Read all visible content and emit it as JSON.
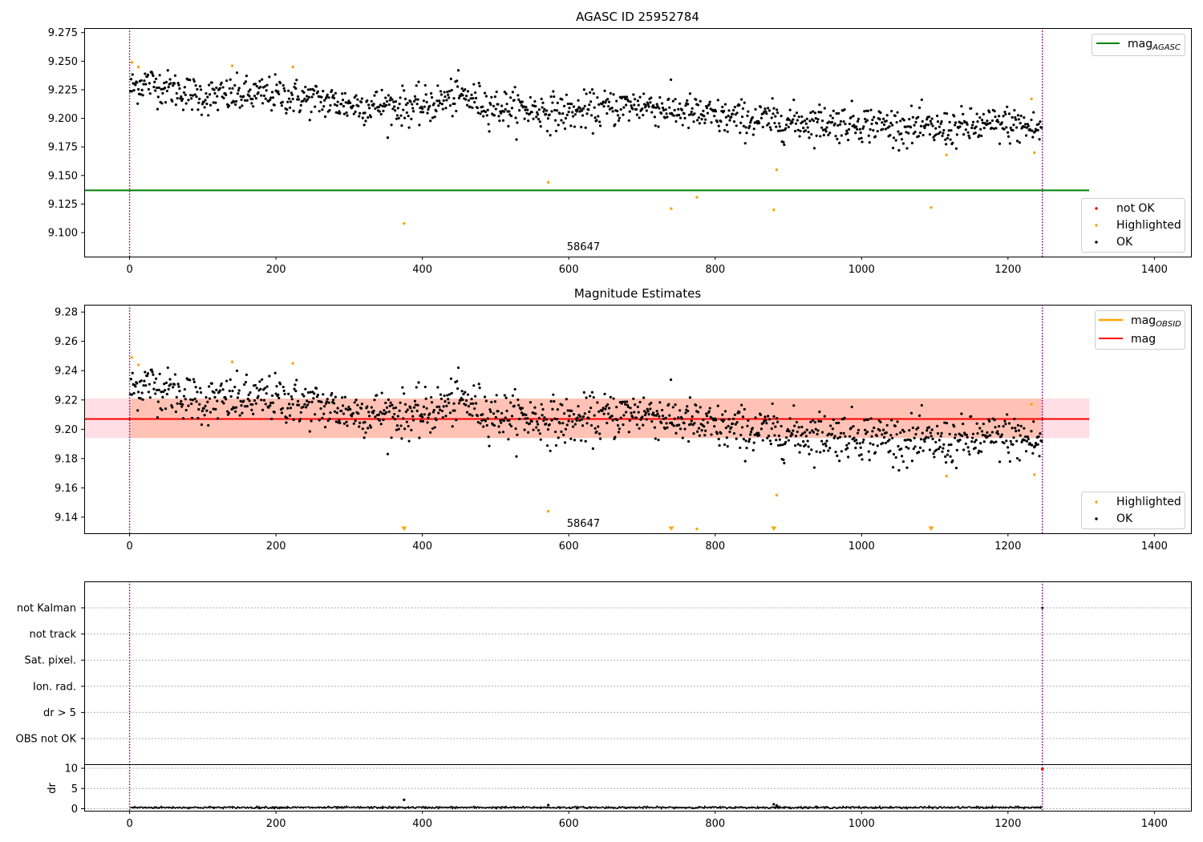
{
  "colors": {
    "ok": "#000000",
    "highlighted": "#ffa500",
    "not_ok": "#ff0000",
    "agasc_line": "#008000",
    "mag_line": "#ff0000",
    "mag_obsid": "#ffa500",
    "band_outer": "#ffc0cb",
    "band_inner": "#ffa07a",
    "obs_boundary": "#800080"
  },
  "chart_data": [
    {
      "type": "scatter",
      "title": "AGASC ID 25952784",
      "xlim": [
        -62,
        1450
      ],
      "ylim": [
        9.079,
        9.279
      ],
      "xticks": [
        0,
        200,
        400,
        600,
        800,
        1000,
        1200,
        1400
      ],
      "yticks": [
        9.1,
        9.125,
        9.15,
        9.175,
        9.2,
        9.225,
        9.25,
        9.275
      ],
      "ytick_labels": [
        "9.100",
        "9.125",
        "9.150",
        "9.175",
        "9.200",
        "9.225",
        "9.250",
        "9.275"
      ],
      "obs_boundaries": [
        0,
        1247
      ],
      "obsid_label": {
        "text": "58647",
        "x": 620
      },
      "mag_agasc": {
        "value": 9.137,
        "x_range": [
          -62,
          1311
        ]
      },
      "legend_lines": [
        {
          "label": "mag",
          "sub": "AGASC",
          "color_key": "agasc_line"
        }
      ],
      "legend_points": [
        {
          "label": "not OK",
          "color_key": "not_ok"
        },
        {
          "label": "Highlighted",
          "color_key": "highlighted"
        },
        {
          "label": "OK",
          "color_key": "ok"
        }
      ],
      "ok_trend": {
        "x": [
          0,
          20,
          100,
          200,
          300,
          400,
          450,
          500,
          600,
          700,
          800,
          900,
          1000,
          1100,
          1200,
          1247
        ],
        "y": [
          9.226,
          9.232,
          9.219,
          9.221,
          9.212,
          9.21,
          9.22,
          9.21,
          9.205,
          9.212,
          9.201,
          9.197,
          9.196,
          9.19,
          9.195,
          9.19
        ],
        "n": 1240,
        "scatter": 0.008
      },
      "highlighted_points": [
        {
          "x": 3,
          "y": 9.249
        },
        {
          "x": 12,
          "y": 9.245
        },
        {
          "x": 140,
          "y": 9.246
        },
        {
          "x": 223,
          "y": 9.245
        },
        {
          "x": 375,
          "y": 9.108
        },
        {
          "x": 572,
          "y": 9.144
        },
        {
          "x": 740,
          "y": 9.121
        },
        {
          "x": 775,
          "y": 9.131
        },
        {
          "x": 880,
          "y": 9.12
        },
        {
          "x": 884,
          "y": 9.155
        },
        {
          "x": 1095,
          "y": 9.122
        },
        {
          "x": 1116,
          "y": 9.168
        },
        {
          "x": 1236,
          "y": 9.17
        },
        {
          "x": 1232,
          "y": 9.217
        }
      ]
    },
    {
      "type": "scatter",
      "title": "Magnitude Estimates",
      "xlim": [
        -62,
        1450
      ],
      "ylim": [
        9.129,
        9.285
      ],
      "xticks": [
        0,
        200,
        400,
        600,
        800,
        1000,
        1200,
        1400
      ],
      "yticks": [
        9.14,
        9.16,
        9.18,
        9.2,
        9.22,
        9.24,
        9.26,
        9.28
      ],
      "ytick_labels": [
        "9.14",
        "9.16",
        "9.18",
        "9.20",
        "9.22",
        "9.24",
        "9.26",
        "9.28"
      ],
      "obs_boundaries": [
        0,
        1247
      ],
      "obsid_label": {
        "text": "58647",
        "x": 620
      },
      "mag": 9.207,
      "mag_band_outer": [
        9.194,
        9.221
      ],
      "mag_band_inner": [
        9.194,
        9.221
      ],
      "inner_band_x": [
        0,
        1247
      ],
      "mag_x_range": [
        -62,
        1311
      ],
      "legend_lines": [
        {
          "label": "mag",
          "sub": "OBSID",
          "color_key": "mag_obsid"
        },
        {
          "label": "mag",
          "sub": "",
          "color_key": "mag_line"
        }
      ],
      "legend_points": [
        {
          "label": "Highlighted",
          "color_key": "highlighted"
        },
        {
          "label": "OK",
          "color_key": "ok"
        }
      ],
      "offscale_markers_x": [
        375,
        740,
        880,
        1095
      ],
      "highlighted_points": [
        {
          "x": 3,
          "y": 9.249
        },
        {
          "x": 12,
          "y": 9.244
        },
        {
          "x": 140,
          "y": 9.246
        },
        {
          "x": 223,
          "y": 9.245
        },
        {
          "x": 572,
          "y": 9.144
        },
        {
          "x": 775,
          "y": 9.132
        },
        {
          "x": 884,
          "y": 9.155
        },
        {
          "x": 1116,
          "y": 9.168
        },
        {
          "x": 1236,
          "y": 9.169
        },
        {
          "x": 1232,
          "y": 9.217
        }
      ]
    },
    {
      "type": "scatter",
      "title": "",
      "xlim": [
        -62,
        1450
      ],
      "categories": [
        "not Kalman",
        "not track",
        "Sat. pixel.",
        "Ion. rad.",
        "dr > 5",
        "OBS not OK"
      ],
      "obs_boundaries": [
        0,
        1247
      ],
      "flag_points": [
        {
          "x": 1247,
          "category": "not Kalman"
        }
      ]
    },
    {
      "type": "line",
      "title": "",
      "ylabel": "dr",
      "xlim": [
        -62,
        1450
      ],
      "ylim": [
        -0.5,
        11
      ],
      "xticks": [
        0,
        200,
        400,
        600,
        800,
        1000,
        1200,
        1400
      ],
      "yticks": [
        0,
        5,
        10
      ],
      "obs_boundaries": [
        0,
        1247
      ],
      "dr_typical": 0.3,
      "dr_spikes": [
        {
          "x": 375,
          "y": 2.2
        },
        {
          "x": 572,
          "y": 0.9
        },
        {
          "x": 880,
          "y": 1.1
        },
        {
          "x": 884,
          "y": 0.8
        }
      ],
      "not_ok_points": [
        {
          "x": 1247,
          "y": 9.8
        }
      ]
    }
  ]
}
